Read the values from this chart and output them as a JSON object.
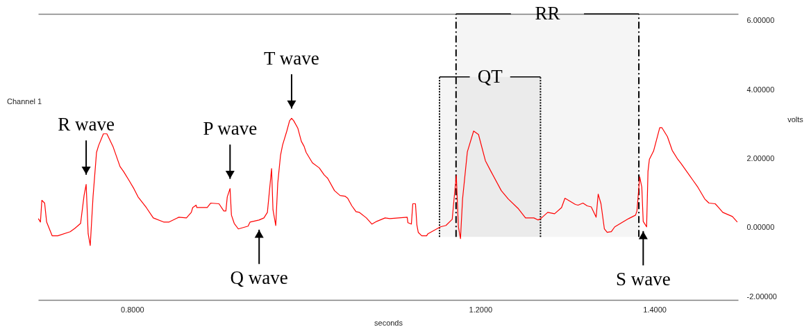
{
  "chart_data": {
    "type": "line",
    "title": "Channel 1",
    "xlabel": "seconds",
    "ylabel": "volts",
    "xlim": [
      0.692,
      1.496
    ],
    "ylim": [
      -2.1,
      6.2
    ],
    "xticks": [
      {
        "value": 0.8,
        "label": "0.8000"
      },
      {
        "value": 1.2,
        "label": "1.2000"
      },
      {
        "value": 1.4,
        "label": "1.4000"
      }
    ],
    "yticks": [
      {
        "value": -2,
        "label": "-2.00000"
      },
      {
        "value": 0,
        "label": "0.00000"
      },
      {
        "value": 2,
        "label": "2.00000"
      },
      {
        "value": 4,
        "label": "4.00000"
      },
      {
        "value": 6,
        "label": "6.00000"
      }
    ],
    "grid": false,
    "legend": false,
    "series": [
      {
        "color": "#ff0000",
        "x": [
          0.6922,
          0.6946,
          0.6962,
          0.6994,
          0.7017,
          0.7081,
          0.7145,
          0.7288,
          0.7343,
          0.7407,
          0.7447,
          0.7471,
          0.7494,
          0.7518,
          0.755,
          0.759,
          0.7614,
          0.7669,
          0.7709,
          0.7781,
          0.786,
          0.79,
          0.7963,
          0.8019,
          0.8067,
          0.8162,
          0.8242,
          0.8361,
          0.8424,
          0.8536,
          0.8623,
          0.8679,
          0.8695,
          0.8734,
          0.8742,
          0.8862,
          0.8901,
          0.8997,
          0.9052,
          0.9076,
          0.9092,
          0.9124,
          0.914,
          0.9172,
          0.9219,
          0.9331,
          0.9354,
          0.9458,
          0.9513,
          0.9553,
          0.9601,
          0.9617,
          0.9649,
          0.9672,
          0.9704,
          0.9728,
          0.9776,
          0.9808,
          0.9831,
          0.9855,
          0.9903,
          0.9943,
          0.9974,
          0.9998,
          1.007,
          1.0149,
          1.0205,
          1.0245,
          1.0324,
          1.0388,
          1.0444,
          1.0475,
          1.0523,
          1.0571,
          1.061,
          1.069,
          1.0754,
          1.0809,
          1.0905,
          1.096,
          1.1159,
          1.1167,
          1.1207,
          1.1223,
          1.1254,
          1.127,
          1.1286,
          1.1326,
          1.1382,
          1.1397,
          1.1541,
          1.1604,
          1.1676,
          1.1692,
          1.1723,
          1.1747,
          1.1771,
          1.1795,
          1.185,
          1.1922,
          1.1978,
          1.2057,
          1.2121,
          1.224,
          1.232,
          1.2431,
          1.2518,
          1.2614,
          1.2661,
          1.2693,
          1.2773,
          1.2852,
          1.2932,
          1.2971,
          1.3011,
          1.3091,
          1.3122,
          1.3178,
          1.3226,
          1.3273,
          1.3329,
          1.3353,
          1.3385,
          1.3424,
          1.3456,
          1.3504,
          1.3543,
          1.3623,
          1.3703,
          1.3782,
          1.3798,
          1.383,
          1.3854,
          1.387,
          1.3909,
          1.3925,
          1.3941,
          1.3989,
          1.406,
          1.4084,
          1.4148,
          1.4203,
          1.4267,
          1.4307,
          1.4442,
          1.4498,
          1.4577,
          1.4625,
          1.4697,
          1.4736,
          1.4784,
          1.4895,
          1.4951
        ],
        "values": [
          0.26,
          0.16,
          0.79,
          0.71,
          0.16,
          -0.24,
          -0.24,
          -0.12,
          -0.02,
          0.12,
          0.93,
          1.25,
          -0.18,
          -0.52,
          0.89,
          2.18,
          2.38,
          2.72,
          2.72,
          2.34,
          1.77,
          1.63,
          1.37,
          1.13,
          0.89,
          0.58,
          0.28,
          0.16,
          0.16,
          0.3,
          0.28,
          0.44,
          0.58,
          0.65,
          0.58,
          0.58,
          0.71,
          0.69,
          0.48,
          0.48,
          0.89,
          1.13,
          0.36,
          0.12,
          -0.04,
          0.04,
          0.16,
          0.22,
          0.28,
          0.44,
          1.71,
          0.52,
          0.06,
          1.29,
          2.1,
          2.4,
          2.8,
          3.1,
          3.17,
          3.1,
          2.88,
          2.5,
          2.36,
          2.18,
          1.88,
          1.73,
          1.53,
          1.43,
          1.07,
          0.93,
          0.91,
          0.85,
          0.63,
          0.46,
          0.44,
          0.28,
          0.1,
          0.18,
          0.28,
          0.26,
          0.3,
          0.14,
          0.1,
          0.69,
          0.69,
          0.08,
          -0.14,
          -0.24,
          -0.24,
          -0.18,
          0.02,
          0.06,
          0.24,
          0.69,
          1.51,
          0.02,
          -0.32,
          0.83,
          2.2,
          2.8,
          2.7,
          1.94,
          1.63,
          1.07,
          0.83,
          0.56,
          0.28,
          0.28,
          0.22,
          0.26,
          0.44,
          0.4,
          0.58,
          0.85,
          0.79,
          0.67,
          0.65,
          0.71,
          0.63,
          0.6,
          0.3,
          0.97,
          0.69,
          -0.04,
          -0.14,
          -0.12,
          0.02,
          0.14,
          0.26,
          0.36,
          0.48,
          1.47,
          1.17,
          0.18,
          0.02,
          1.63,
          1.98,
          2.22,
          2.9,
          2.9,
          2.64,
          2.24,
          1.98,
          1.85,
          1.37,
          1.17,
          0.83,
          0.71,
          0.69,
          0.58,
          0.44,
          0.32,
          0.16
        ]
      }
    ],
    "annotations": [
      {
        "text": "R wave",
        "x": 0.7471,
        "y": 1.25
      },
      {
        "text": "P wave",
        "x": 0.9124,
        "y": 1.13
      },
      {
        "text": "T wave",
        "x": 0.9831,
        "y": 3.17
      },
      {
        "text": "Q wave",
        "x": 0.9458,
        "y": 0.22
      },
      {
        "text": "S wave",
        "x": 1.387,
        "y": 0.18
      }
    ],
    "bands": [
      {
        "axis": "x",
        "from": 1.172,
        "to": 1.382,
        "label": "RR",
        "color": "#000000"
      },
      {
        "axis": "x",
        "from": 1.153,
        "to": 1.269,
        "label": "QT",
        "color": "#000000"
      }
    ],
    "ref_lines": [
      {
        "axis": "x",
        "value": 1.172,
        "color": "#000000",
        "line_style": "dashed"
      },
      {
        "axis": "x",
        "value": 1.382,
        "color": "#000000",
        "line_style": "dashed"
      },
      {
        "axis": "x",
        "value": 1.153,
        "color": "#000000",
        "line_style": "dotted"
      },
      {
        "axis": "x",
        "value": 1.269,
        "color": "#000000",
        "line_style": "dotted"
      }
    ]
  }
}
